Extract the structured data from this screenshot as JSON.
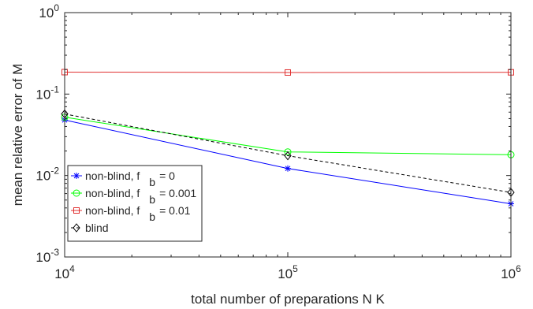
{
  "chart_data": {
    "type": "line",
    "x_scale": "log",
    "y_scale": "log",
    "xlim": [
      10000,
      1000000
    ],
    "ylim": [
      0.001,
      1
    ],
    "xlabel": "total number of preparations N K",
    "ylabel": "mean relative error of M",
    "x_ticks": [
      {
        "value": 10000,
        "base": "10",
        "exp": "4"
      },
      {
        "value": 100000,
        "base": "10",
        "exp": "5"
      },
      {
        "value": 1000000,
        "base": "10",
        "exp": "6"
      }
    ],
    "y_ticks": [
      {
        "value": 0.001,
        "base": "10",
        "exp": "-3"
      },
      {
        "value": 0.01,
        "base": "10",
        "exp": "-2"
      },
      {
        "value": 0.1,
        "base": "10",
        "exp": "-1"
      },
      {
        "value": 1,
        "base": "10",
        "exp": "0"
      }
    ],
    "x": [
      10000,
      100000,
      1000000
    ],
    "series": [
      {
        "name": "non-blind, f_b = 0",
        "legend_main": "non-blind, f",
        "legend_sub": "b",
        "legend_tail": "= 0",
        "color": "#0000ff",
        "marker": "asterisk",
        "dash": "solid",
        "values": [
          0.048,
          0.0122,
          0.0045
        ]
      },
      {
        "name": "non-blind, f_b = 0.001",
        "legend_main": "non-blind, f",
        "legend_sub": "b",
        "legend_tail": "= 0.001",
        "color": "#00ff00",
        "marker": "circle",
        "dash": "solid",
        "values": [
          0.052,
          0.0195,
          0.018
        ]
      },
      {
        "name": "non-blind, f_b = 0.01",
        "legend_main": "non-blind, f",
        "legend_sub": "b",
        "legend_tail": "= 0.01",
        "color": "#e03030",
        "marker": "square",
        "dash": "solid",
        "values": [
          0.186,
          0.184,
          0.185
        ]
      },
      {
        "name": "blind",
        "legend_main": "blind",
        "legend_sub": "",
        "legend_tail": "",
        "color": "#000000",
        "marker": "diamond",
        "dash": "dashed",
        "values": [
          0.057,
          0.0175,
          0.0062
        ]
      }
    ],
    "grid": false,
    "legend_position": "bottom-left",
    "colors": {
      "axes": "#262626",
      "background": "#ffffff"
    }
  }
}
